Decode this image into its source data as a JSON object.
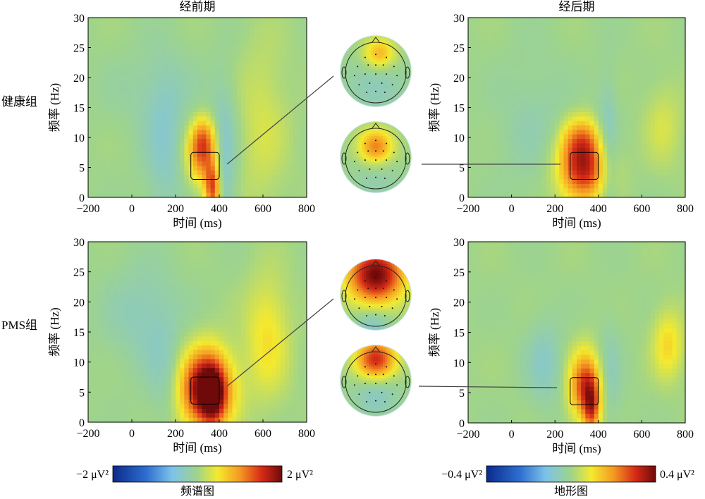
{
  "chart_data": {
    "type": "heatmap",
    "description_labels": {
      "col_titles": [
        "经前期",
        "经后期"
      ],
      "row_labels": [
        "健康组",
        "PMS组"
      ]
    },
    "panels": [
      {
        "id": "healthy-pre",
        "group": "健康组",
        "phase": "经前期",
        "xlabel": "时间 (ms)",
        "ylabel": "频率 (Hz)",
        "xlim": [
          -200,
          800
        ],
        "ylim": [
          0,
          30
        ],
        "xticks": [
          "−200",
          "0",
          "200",
          "400",
          "600",
          "800"
        ],
        "yticks": [
          "0",
          "5",
          "10",
          "15",
          "20",
          "25",
          "30"
        ],
        "roi": {
          "time": [
            270,
            400
          ],
          "freq": [
            3,
            7.5
          ]
        },
        "blobs": [
          {
            "t": 320,
            "f": 7,
            "st": 50,
            "sf": 3.5,
            "a": 1.1
          },
          {
            "t": 370,
            "f": 1.5,
            "st": 25,
            "sf": 3,
            "a": 1.4
          },
          {
            "t": 330,
            "f": 10,
            "st": 40,
            "sf": 2.5,
            "a": 0.6
          },
          {
            "t": 420,
            "f": 7,
            "st": 40,
            "sf": 8,
            "a": -0.5
          },
          {
            "t": 150,
            "f": 8,
            "st": 70,
            "sf": 9,
            "a": -0.35
          },
          {
            "t": 100,
            "f": 18,
            "st": 160,
            "sf": 5,
            "a": -0.15
          },
          {
            "t": 600,
            "f": 12,
            "st": 80,
            "sf": 10,
            "a": 0.3
          }
        ]
      },
      {
        "id": "healthy-post",
        "group": "健康组",
        "phase": "经后期",
        "xlabel": "时间 (ms)",
        "ylabel": "频率 (Hz)",
        "xlim": [
          -200,
          800
        ],
        "ylim": [
          0,
          30
        ],
        "xticks": [
          "−200",
          "0",
          "200",
          "400",
          "600",
          "800"
        ],
        "yticks": [
          "0",
          "5",
          "10",
          "15",
          "20",
          "25",
          "30"
        ],
        "roi": {
          "time": [
            270,
            400
          ],
          "freq": [
            3,
            7.5
          ]
        },
        "blobs": [
          {
            "t": 330,
            "f": 5,
            "st": 80,
            "sf": 4,
            "a": 1.7
          },
          {
            "t": 320,
            "f": 10,
            "st": 60,
            "sf": 2.5,
            "a": 0.6
          },
          {
            "t": 440,
            "f": 7,
            "st": 35,
            "sf": 8,
            "a": -0.5
          },
          {
            "t": 100,
            "f": 12,
            "st": 120,
            "sf": 8,
            "a": -0.2
          },
          {
            "t": 700,
            "f": 12,
            "st": 60,
            "sf": 5,
            "a": 0.3
          }
        ]
      },
      {
        "id": "pms-pre",
        "group": "PMS组",
        "phase": "经前期",
        "xlabel": "时间 (ms)",
        "ylabel": "频率 (Hz)",
        "xlim": [
          -200,
          800
        ],
        "ylim": [
          0,
          30
        ],
        "xticks": [
          "−200",
          "0",
          "200",
          "400",
          "600",
          "800"
        ],
        "yticks": [
          "0",
          "5",
          "10",
          "15",
          "20",
          "25",
          "30"
        ],
        "roi": {
          "time": [
            270,
            400
          ],
          "freq": [
            3,
            7.5
          ]
        },
        "blobs": [
          {
            "t": 340,
            "f": 5.5,
            "st": 80,
            "sf": 4.5,
            "a": 2.2
          },
          {
            "t": 370,
            "f": 4.5,
            "st": 35,
            "sf": 3,
            "a": 1.0
          },
          {
            "t": 620,
            "f": 14,
            "st": 70,
            "sf": 7,
            "a": 0.55
          },
          {
            "t": 50,
            "f": 18,
            "st": 120,
            "sf": 6,
            "a": -0.3
          },
          {
            "t": 150,
            "f": 8,
            "st": 60,
            "sf": 6,
            "a": -0.25
          }
        ]
      },
      {
        "id": "pms-post",
        "group": "PMS组",
        "phase": "经后期",
        "xlabel": "时间 (ms)",
        "ylabel": "频率 (Hz)",
        "xlim": [
          -200,
          800
        ],
        "ylim": [
          0,
          30
        ],
        "xticks": [
          "−200",
          "0",
          "200",
          "400",
          "600",
          "800"
        ],
        "yticks": [
          "0",
          "5",
          "10",
          "15",
          "20",
          "25",
          "30"
        ],
        "roi": {
          "time": [
            270,
            400
          ],
          "freq": [
            3,
            7.5
          ]
        },
        "blobs": [
          {
            "t": 340,
            "f": 6,
            "st": 50,
            "sf": 4,
            "a": 1.5
          },
          {
            "t": 370,
            "f": 2.5,
            "st": 25,
            "sf": 3,
            "a": 1.0
          },
          {
            "t": 720,
            "f": 13,
            "st": 50,
            "sf": 4,
            "a": 0.6
          },
          {
            "t": 150,
            "f": 10,
            "st": 60,
            "sf": 5,
            "a": -0.35
          },
          {
            "t": 450,
            "f": 8,
            "st": 40,
            "sf": 6,
            "a": -0.3
          }
        ]
      }
    ],
    "topomaps": [
      {
        "id": "topo-healthy-pre",
        "group": "健康组",
        "phase": "经前期",
        "centers": [
          {
            "x": 0.55,
            "y": 0.25,
            "s": 0.16,
            "a": 1.0
          },
          {
            "x": 0.5,
            "y": 0.72,
            "s": 0.3,
            "a": -0.35
          }
        ]
      },
      {
        "id": "topo-healthy-post",
        "group": "健康组",
        "phase": "经后期",
        "centers": [
          {
            "x": 0.5,
            "y": 0.35,
            "s": 0.17,
            "a": 1.3
          },
          {
            "x": 0.5,
            "y": 0.85,
            "s": 0.25,
            "a": -0.25
          }
        ]
      },
      {
        "id": "topo-pms-pre",
        "group": "PMS组",
        "phase": "经前期",
        "centers": [
          {
            "x": 0.5,
            "y": 0.22,
            "s": 0.28,
            "a": 2.3
          },
          {
            "x": 0.45,
            "y": 0.95,
            "s": 0.18,
            "a": -0.5
          }
        ]
      },
      {
        "id": "topo-pms-post",
        "group": "PMS组",
        "phase": "经后期",
        "centers": [
          {
            "x": 0.5,
            "y": 0.2,
            "s": 0.2,
            "a": 1.8
          },
          {
            "x": 0.5,
            "y": 0.7,
            "s": 0.22,
            "a": -0.45
          }
        ]
      }
    ],
    "colorbars": [
      {
        "id": "spectrum",
        "min_label": "−2 μV²",
        "max_label": "2 μV²",
        "title": "频谱图",
        "range": [
          -2,
          2
        ]
      },
      {
        "id": "topography",
        "min_label": "−0.4 μV²",
        "max_label": "0.4 μV²",
        "title": "地形图",
        "range": [
          -0.4,
          0.4
        ]
      }
    ]
  }
}
